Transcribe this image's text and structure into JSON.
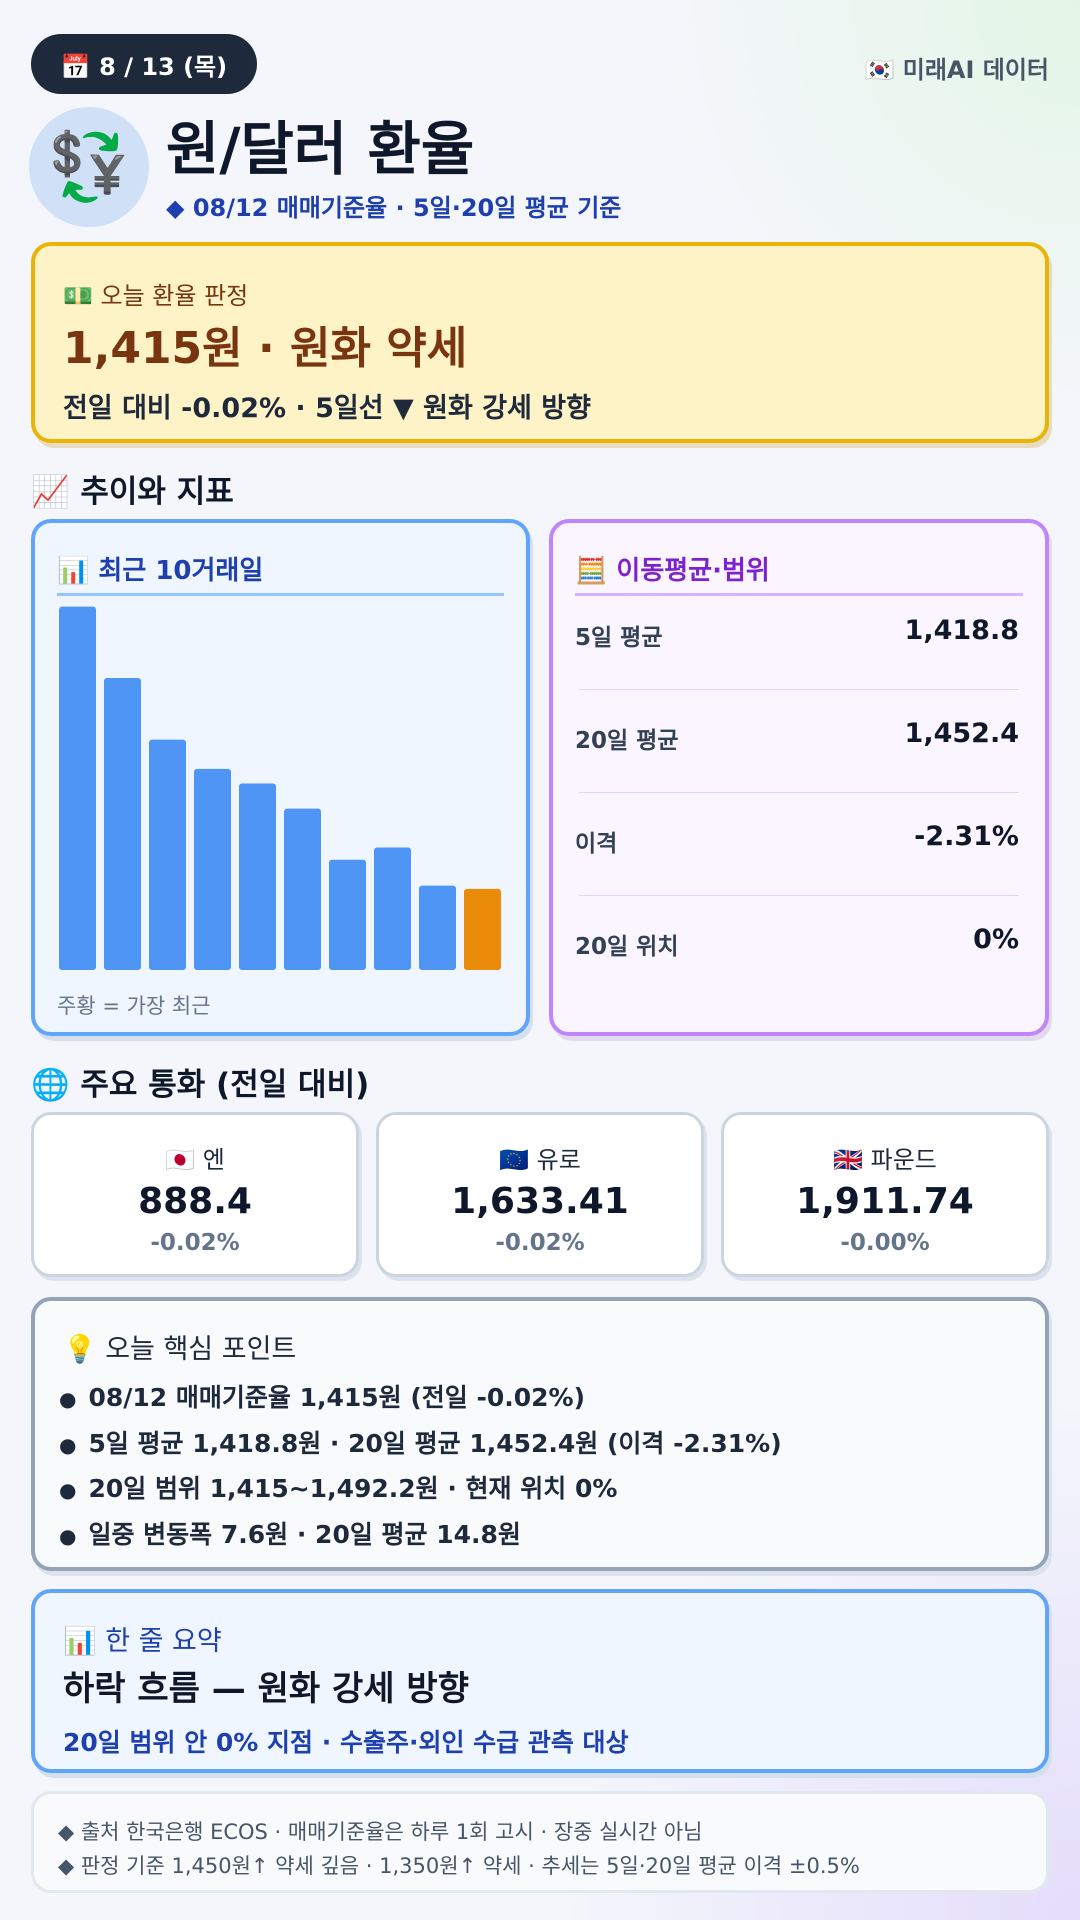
{
  "header": {
    "date": "📅 8 / 13 (목)",
    "brand": "🇰🇷 미래AI 데이터",
    "icon": "💱",
    "title": "원/달러 환율",
    "subtitle": "◆ 08/12 매매기준율 · 5일·20일 평균 기준"
  },
  "verdict": {
    "label": "💵 오늘 환율 판정",
    "headline": "1,415원 · 원화 약세",
    "detail": "전일 대비 -0.02% · 5일선 ▼ 원화 강세 방향"
  },
  "trend_section": "📈 추이와 지표",
  "chart_data": {
    "type": "bar",
    "title": "📊 최근 10거래일",
    "categories": [
      null,
      null,
      null,
      null,
      null,
      null,
      null,
      null,
      null,
      null
    ],
    "values": [
      1449.8,
      1441.0,
      1433.4,
      1429.8,
      1428.0,
      1424.9,
      1418.6,
      1420.1,
      1415.4,
      1415
    ],
    "color": "#4f95f5",
    "latest_color": "#ea8c0a",
    "ylim": [
      1405,
      1450
    ],
    "caption": "주황 = 가장 최근"
  },
  "moving_average": {
    "title": "🧮 이동평균·범위",
    "rows": [
      {
        "label": "5일 평균",
        "value": "1,418.8"
      },
      {
        "label": "20일 평균",
        "value": "1,452.4"
      },
      {
        "label": "이격",
        "value": "-2.31%"
      },
      {
        "label": "20일 위치",
        "value": "0%"
      }
    ]
  },
  "currencies": {
    "title": "🌐 주요 통화 (전일 대비)",
    "items": [
      {
        "name": "🇯🇵 엔",
        "value": "888.4",
        "change": "-0.02%"
      },
      {
        "name": "🇪🇺 유로",
        "value": "1,633.41",
        "change": "-0.02%"
      },
      {
        "name": "🇬🇧 파운드",
        "value": "1,911.74",
        "change": "-0.00%"
      }
    ]
  },
  "key_points": {
    "title": "💡 오늘 핵심 포인트",
    "items": [
      "08/12 매매기준율 1,415원 (전일 -0.02%)",
      "5일 평균 1,418.8원 · 20일 평균 1,452.4원 (이격 -2.31%)",
      "20일 범위 1,415~1,492.2원 · 현재 위치 0%",
      "일중 변동폭 7.6원 · 20일 평균 14.8원"
    ]
  },
  "summary": {
    "title": "📊 한 줄 요약",
    "headline": "하락 흐름 — 원화 강세 방향",
    "detail": "20일 범위 안 0% 지점 · 수출주·외인 수급 관측 대상"
  },
  "footer": [
    "◆ 출처 한국은행 ECOS · 매매기준율은 하루 1회 고시 · 장중 실시간 아님",
    "◆ 판정 기준 1,450원↑ 약세 깊음 · 1,350원↑ 약세 · 추세는 5일·20일 평균 이격 ±0.5%"
  ]
}
